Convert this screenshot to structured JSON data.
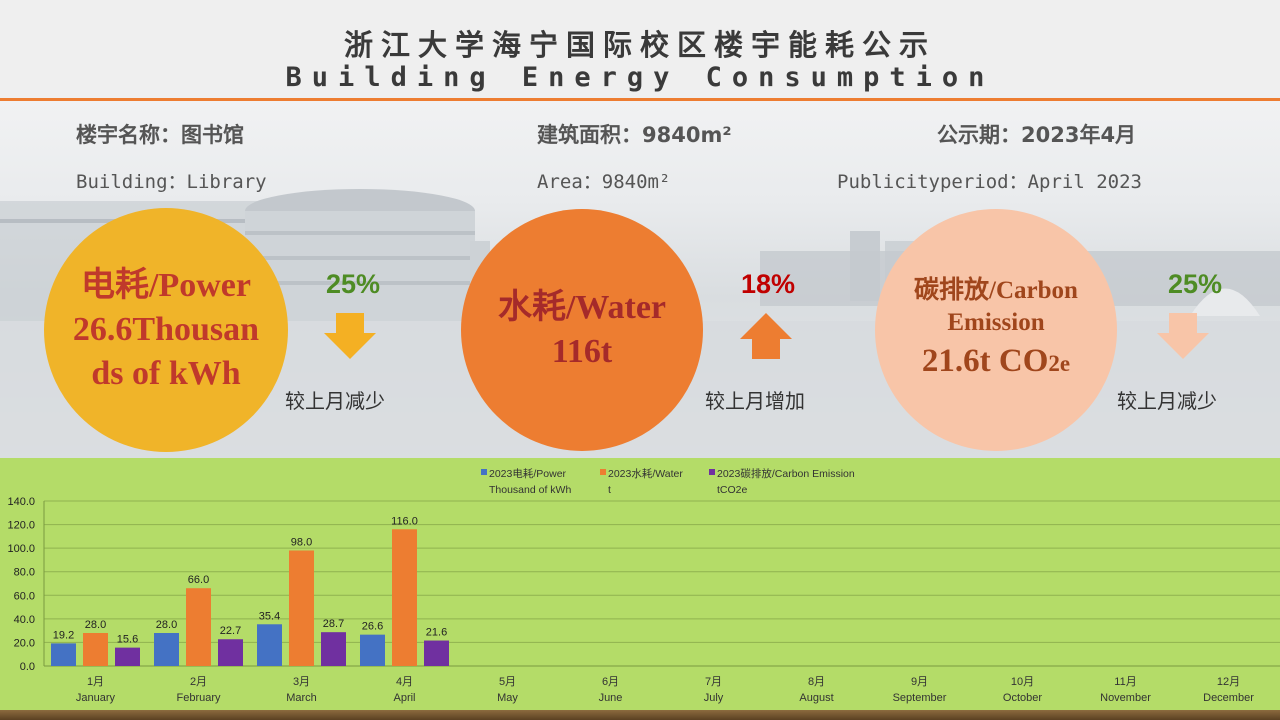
{
  "header": {
    "title_cn": "浙江大学海宁国际校区楼宇能耗公示",
    "title_en": "Building Energy Consumption"
  },
  "info": {
    "building_cn": "楼宇名称：图书馆",
    "building_en": "Building：Library",
    "area_cn": "建筑面积：9840m²",
    "area_en": "Area：9840m²",
    "period_cn": "公示期：2023年4月",
    "period_en": "Publicityperiod：April 2023"
  },
  "metrics": {
    "power": {
      "label": "电耗/Power",
      "value": "26.6Thousan",
      "value2": "ds of kWh",
      "change": "25%",
      "direction": "down",
      "compare": "较上月减少",
      "color": "#f0b429"
    },
    "water": {
      "label": "水耗/Water",
      "value": "116t",
      "change": "18%",
      "direction": "up",
      "compare": "较上月增加",
      "color": "#ed7d31"
    },
    "carbon": {
      "label": "碳排放/Carbon",
      "label2": "Emission",
      "value": "21.6t CO",
      "value_sub": "2e",
      "change": "25%",
      "direction": "down",
      "compare": "较上月减少",
      "color": "#f8c5a8"
    }
  },
  "chart_data": {
    "type": "bar",
    "categories": [
      {
        "cn": "1月",
        "en": "January"
      },
      {
        "cn": "2月",
        "en": "February"
      },
      {
        "cn": "3月",
        "en": "March"
      },
      {
        "cn": "4月",
        "en": "April"
      },
      {
        "cn": "5月",
        "en": "May"
      },
      {
        "cn": "6月",
        "en": "June"
      },
      {
        "cn": "7月",
        "en": "July"
      },
      {
        "cn": "8月",
        "en": "August"
      },
      {
        "cn": "9月",
        "en": "September"
      },
      {
        "cn": "10月",
        "en": "October"
      },
      {
        "cn": "11月",
        "en": "November"
      },
      {
        "cn": "12月",
        "en": "December"
      }
    ],
    "series": [
      {
        "name": "2023电耗/Power",
        "name2": "Thousand of kWh",
        "color": "#4472c4",
        "values": [
          19.2,
          28.0,
          35.4,
          26.6,
          null,
          null,
          null,
          null,
          null,
          null,
          null,
          null
        ]
      },
      {
        "name": "2023水耗/Water",
        "name2": "t",
        "color": "#ed7d31",
        "values": [
          28.0,
          66.0,
          98.0,
          116.0,
          null,
          null,
          null,
          null,
          null,
          null,
          null,
          null
        ]
      },
      {
        "name": "2023碳排放/Carbon Emission",
        "name2": "tCO2e",
        "color": "#7030a0",
        "values": [
          15.6,
          22.7,
          28.7,
          21.6,
          null,
          null,
          null,
          null,
          null,
          null,
          null,
          null
        ]
      }
    ],
    "yticks": [
      "0.0",
      "20.0",
      "40.0",
      "60.0",
      "80.0",
      "100.0",
      "120.0",
      "140.0"
    ],
    "ylim": [
      0,
      140
    ],
    "grid": true,
    "legend_position": "top"
  }
}
